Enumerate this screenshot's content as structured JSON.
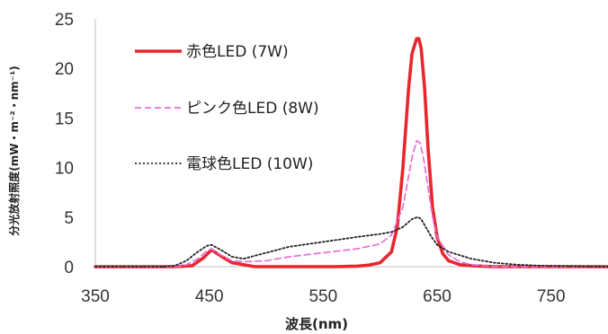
{
  "chart_data": {
    "type": "line",
    "title": "",
    "xlabel": "波長(nm)",
    "ylabel": "分光放射照度(mW・m⁻²・nm⁻¹)",
    "xlim": [
      350,
      800
    ],
    "ylim": [
      0,
      25
    ],
    "xticks": [
      350,
      450,
      550,
      650,
      750
    ],
    "yticks": [
      0,
      5,
      10,
      15,
      20,
      25
    ],
    "grid": false,
    "legend_position": "top-left",
    "series": [
      {
        "name": "赤色LED (7W)",
        "color": "#e8262d",
        "style": "solid",
        "x": [
          350,
          420,
          435,
          445,
          452,
          460,
          470,
          490,
          520,
          560,
          580,
          590,
          600,
          610,
          615,
          620,
          625,
          628,
          632,
          634,
          636,
          639,
          642,
          646,
          650,
          655,
          660,
          670,
          680,
          700,
          800
        ],
        "y": [
          0,
          0,
          0.1,
          0.9,
          1.7,
          1.1,
          0.4,
          0,
          0,
          0,
          0.05,
          0.15,
          0.4,
          1.5,
          4,
          10,
          18,
          21.5,
          23,
          23,
          22,
          18,
          12,
          6,
          3,
          1.3,
          0.6,
          0.2,
          0.1,
          0,
          0
        ]
      },
      {
        "name": "ピンク色LED (8W)",
        "color": "#e86fdc",
        "style": "dashed",
        "x": [
          350,
          420,
          430,
          440,
          448,
          452,
          460,
          470,
          480,
          500,
          520,
          550,
          580,
          600,
          610,
          620,
          628,
          632,
          635,
          638,
          642,
          646,
          650,
          660,
          670,
          680,
          700,
          800
        ],
        "y": [
          0,
          0,
          0.2,
          0.8,
          1.6,
          1.8,
          1.2,
          0.6,
          0.5,
          0.6,
          1.0,
          1.4,
          1.8,
          2.3,
          3.2,
          6,
          11,
          12.7,
          12.5,
          11,
          8,
          5,
          3,
          1.2,
          0.5,
          0.2,
          0,
          0
        ]
      },
      {
        "name": "電球色LED (10W)",
        "color": "#222222",
        "style": "dotted",
        "x": [
          350,
          410,
          420,
          430,
          440,
          448,
          452,
          460,
          470,
          480,
          500,
          520,
          550,
          580,
          600,
          610,
          620,
          628,
          633,
          636,
          640,
          645,
          650,
          660,
          680,
          700,
          720,
          740,
          800
        ],
        "y": [
          0,
          0,
          0.1,
          0.6,
          1.5,
          2.1,
          2.2,
          1.7,
          1.0,
          0.8,
          1.4,
          2.0,
          2.5,
          3.0,
          3.3,
          3.5,
          4.0,
          4.8,
          5.0,
          4.8,
          4.0,
          3.0,
          2.2,
          1.5,
          0.8,
          0.4,
          0.2,
          0.1,
          0
        ]
      }
    ]
  }
}
